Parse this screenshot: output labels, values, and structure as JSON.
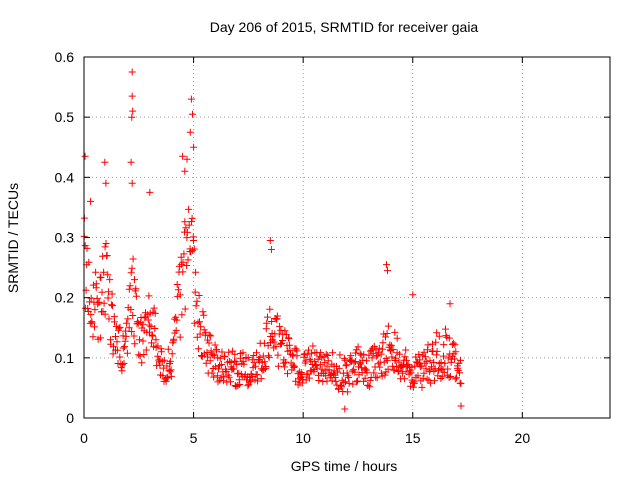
{
  "chart_data": {
    "type": "scatter",
    "title": "Day 206 of 2015, SRMTID for receiver gaia",
    "xlabel": "GPS time / hours",
    "ylabel": "SRMTID / TECUs",
    "xlim": [
      0,
      24
    ],
    "ylim": [
      0,
      0.6
    ],
    "xticks": [
      0,
      5,
      10,
      15,
      20
    ],
    "yticks": [
      0,
      0.1,
      0.2,
      0.3,
      0.4,
      0.5,
      0.6
    ],
    "xtick_labels": [
      "0",
      "5",
      "10",
      "15",
      "20"
    ],
    "ytick_labels": [
      "0",
      "0.1",
      "0.2",
      "0.3",
      "0.4",
      "0.5",
      "0.6"
    ],
    "grid": true,
    "marker": "+",
    "series": [
      {
        "name": "SRMTID",
        "color": "#ff0000",
        "profile_x": [
          0.0,
          0.1,
          0.2,
          0.4,
          0.6,
          0.8,
          1.0,
          1.3,
          1.6,
          1.9,
          2.2,
          2.5,
          2.8,
          3.1,
          3.4,
          3.7,
          4.0,
          4.3,
          4.6,
          4.9,
          5.2,
          5.5,
          6.0,
          6.5,
          7.0,
          7.5,
          8.0,
          8.5,
          9.0,
          9.5,
          10.0,
          10.5,
          11.0,
          11.5,
          12.0,
          12.5,
          13.0,
          13.5,
          14.0,
          14.5,
          15.0,
          15.5,
          16.0,
          16.5,
          17.0,
          17.2
        ],
        "profile_y": [
          0.27,
          0.25,
          0.23,
          0.19,
          0.18,
          0.2,
          0.22,
          0.15,
          0.12,
          0.11,
          0.2,
          0.15,
          0.13,
          0.17,
          0.09,
          0.09,
          0.09,
          0.18,
          0.25,
          0.27,
          0.17,
          0.12,
          0.09,
          0.09,
          0.08,
          0.08,
          0.09,
          0.14,
          0.12,
          0.09,
          0.08,
          0.1,
          0.08,
          0.08,
          0.07,
          0.09,
          0.08,
          0.1,
          0.12,
          0.09,
          0.08,
          0.08,
          0.1,
          0.11,
          0.09,
          0.08
        ],
        "spread_y": [
          0.08,
          0.08,
          0.07,
          0.06,
          0.06,
          0.07,
          0.08,
          0.05,
          0.04,
          0.04,
          0.08,
          0.05,
          0.05,
          0.06,
          0.03,
          0.03,
          0.03,
          0.07,
          0.08,
          0.09,
          0.06,
          0.04,
          0.03,
          0.03,
          0.03,
          0.03,
          0.03,
          0.05,
          0.04,
          0.03,
          0.03,
          0.03,
          0.03,
          0.03,
          0.03,
          0.03,
          0.03,
          0.04,
          0.04,
          0.03,
          0.03,
          0.03,
          0.04,
          0.04,
          0.03,
          0.03
        ],
        "x_start": 0.0,
        "x_end": 17.2,
        "x_step": 0.025,
        "outliers": [
          {
            "x": 0.05,
            "y": 0.435
          },
          {
            "x": 0.3,
            "y": 0.36
          },
          {
            "x": 0.95,
            "y": 0.425
          },
          {
            "x": 1.0,
            "y": 0.39
          },
          {
            "x": 2.2,
            "y": 0.575
          },
          {
            "x": 2.2,
            "y": 0.535
          },
          {
            "x": 2.22,
            "y": 0.51
          },
          {
            "x": 2.18,
            "y": 0.5
          },
          {
            "x": 2.15,
            "y": 0.425
          },
          {
            "x": 2.2,
            "y": 0.39
          },
          {
            "x": 3.0,
            "y": 0.375
          },
          {
            "x": 4.5,
            "y": 0.435
          },
          {
            "x": 4.7,
            "y": 0.43
          },
          {
            "x": 4.9,
            "y": 0.53
          },
          {
            "x": 4.95,
            "y": 0.505
          },
          {
            "x": 4.85,
            "y": 0.475
          },
          {
            "x": 5.0,
            "y": 0.45
          },
          {
            "x": 4.6,
            "y": 0.41
          },
          {
            "x": 8.5,
            "y": 0.295
          },
          {
            "x": 8.55,
            "y": 0.28
          },
          {
            "x": 13.8,
            "y": 0.255
          },
          {
            "x": 13.85,
            "y": 0.245
          },
          {
            "x": 15.0,
            "y": 0.205
          },
          {
            "x": 16.7,
            "y": 0.19
          },
          {
            "x": 11.9,
            "y": 0.015
          },
          {
            "x": 17.2,
            "y": 0.02
          }
        ]
      }
    ]
  }
}
